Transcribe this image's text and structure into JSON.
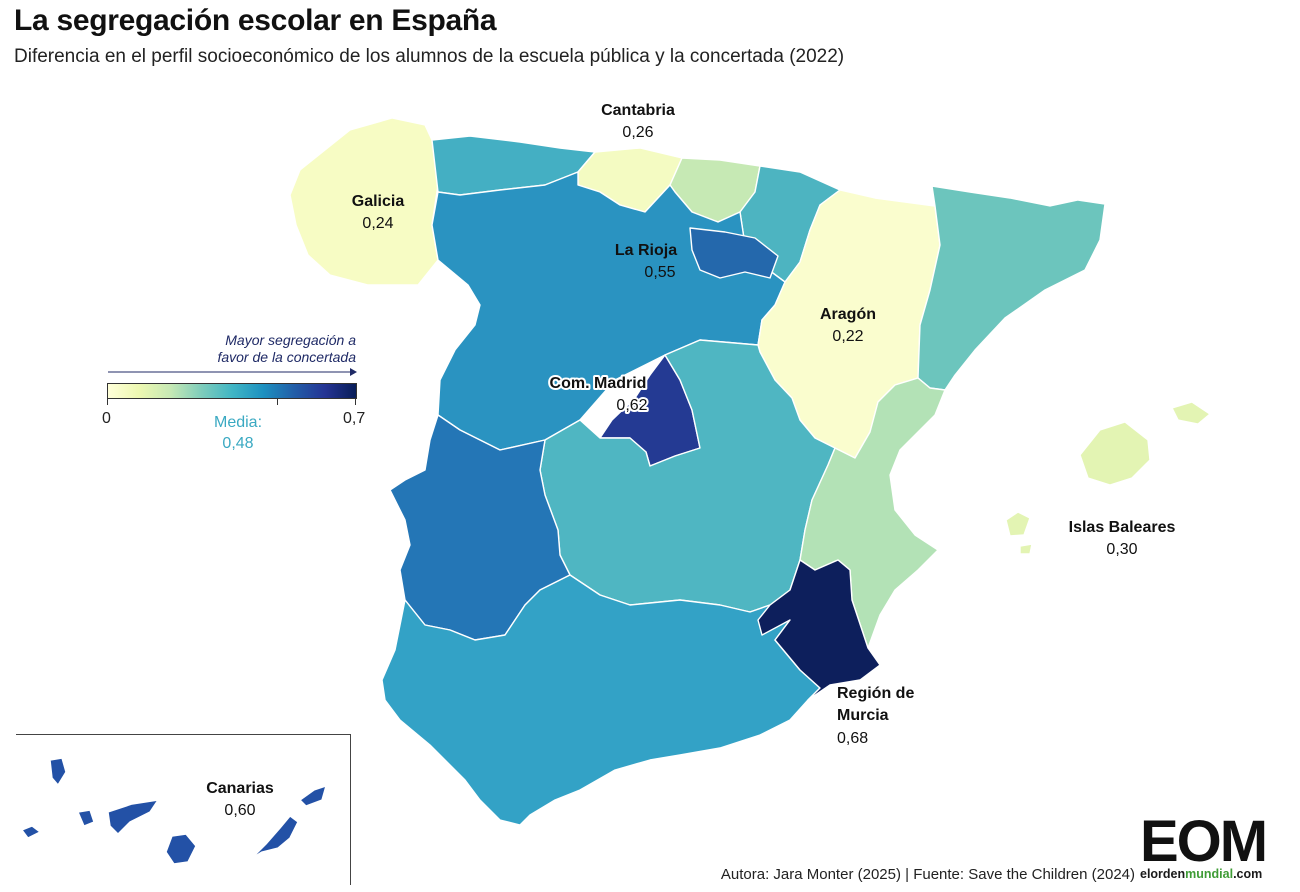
{
  "title": "La segregación escolar en España",
  "subtitle": "Diferencia en el perfil socioeconómico de los alumnos de la escuela pública y la concertada (2022)",
  "legend": {
    "title_line1": "Mayor segregación a",
    "title_line2": "favor de la concertada",
    "min_label": "0",
    "max_label": "0,7",
    "mean_label": "Media:",
    "mean_value": "0,48",
    "mean": 0.48,
    "min": 0,
    "max": 0.7,
    "colors": [
      "#ffffd9",
      "#edf8b1",
      "#c7e9b4",
      "#7fcdbb",
      "#41b6c4",
      "#1d91c0",
      "#225ea8",
      "#253494",
      "#081d58"
    ]
  },
  "labels": {
    "cantabria": {
      "name": "Cantabria",
      "value": "0,26"
    },
    "galicia": {
      "name": "Galicia",
      "value": "0,24"
    },
    "rioja": {
      "name": "La Rioja",
      "value": "0,55"
    },
    "aragon": {
      "name": "Aragón",
      "value": "0,22"
    },
    "madrid": {
      "name": "Com. Madrid",
      "value": "0,62"
    },
    "baleares": {
      "name": "Islas Baleares",
      "value": "0,30"
    },
    "murcia": {
      "name_line1": "Región de",
      "name_line2": "Murcia",
      "value": "0,68"
    },
    "canarias": {
      "name": "Canarias",
      "value": "0,60"
    }
  },
  "regions": {
    "galicia": {
      "color": "#f7fcc4"
    },
    "asturias": {
      "color": "#44afc3"
    },
    "cantabria": {
      "color": "#f4fbc2"
    },
    "pais_vasco": {
      "color": "#c6e9b4"
    },
    "navarra": {
      "color": "#4db4c1"
    },
    "aragon": {
      "color": "#fafdce"
    },
    "cataluna": {
      "color": "#6cc5bd"
    },
    "castilla_leon": {
      "color": "#2a93c1"
    },
    "rioja": {
      "color": "#2468ac"
    },
    "madrid": {
      "color": "#243a93"
    },
    "castilla_la_mancha": {
      "color": "#4fb6c2"
    },
    "valencia": {
      "color": "#b3e2b6"
    },
    "extremadura": {
      "color": "#2476b6"
    },
    "andalucia": {
      "color": "#33a2c6"
    },
    "murcia": {
      "color": "#0d1f5c"
    },
    "baleares": {
      "color": "#e3f4b3"
    },
    "canarias": {
      "color": "#2351a6"
    }
  },
  "footer": {
    "source": "Autora: Jara Monter (2025) | Fuente: Save the Children (2024)",
    "logo_text": "EOM",
    "logo_url_a": "elorden",
    "logo_url_b": "mundial",
    "logo_url_c": ".com"
  }
}
